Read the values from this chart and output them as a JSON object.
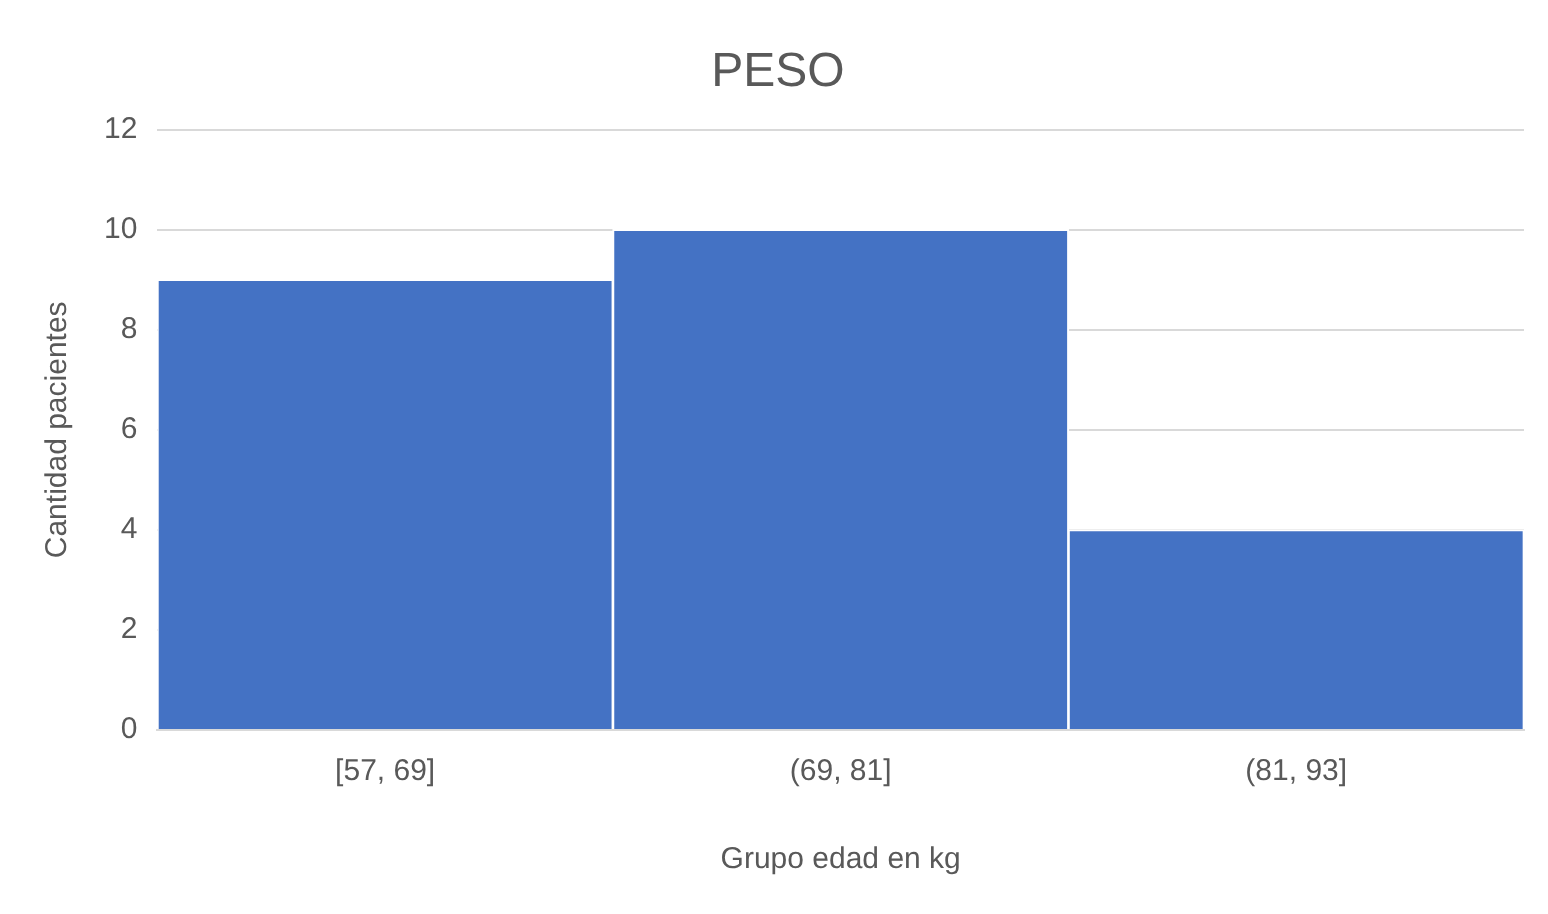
{
  "chart_data": {
    "type": "bar",
    "title": "PESO",
    "xlabel": "Grupo edad en kg",
    "ylabel": "Cantidad pacientes",
    "categories": [
      "[57, 69]",
      "(69, 81]",
      "(81, 93]"
    ],
    "series": [
      {
        "color": "#4472c4",
        "values": [
          9,
          10,
          4
        ]
      }
    ],
    "ylim": [
      0,
      12
    ],
    "yticks": [
      0,
      2,
      4,
      6,
      8,
      10,
      12
    ],
    "grid": "y",
    "legend": false
  }
}
